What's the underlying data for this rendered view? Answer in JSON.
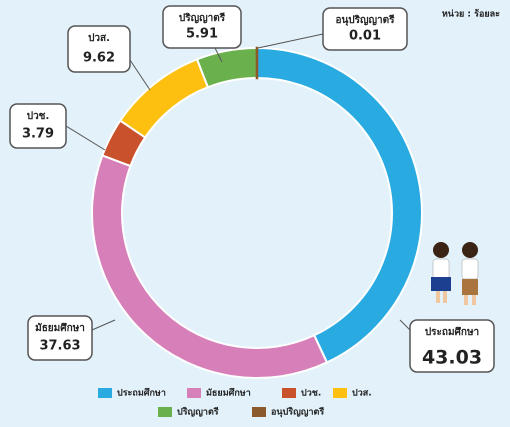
{
  "chart_data": {
    "type": "donut",
    "unit_note": "หน่วย : ร้อยละ",
    "categories": [
      "ประถมศึกษา",
      "มัธยมศึกษา",
      "ปวช.",
      "ปวส.",
      "ปริญญาตรี",
      "อนุปริญญาตรี"
    ],
    "values": [
      43.03,
      37.63,
      3.79,
      9.62,
      5.91,
      0.01
    ],
    "colors": [
      "#29abe2",
      "#d67fb8",
      "#c9512b",
      "#fdc010",
      "#6ab04c",
      "#8b5a2b"
    ]
  }
}
